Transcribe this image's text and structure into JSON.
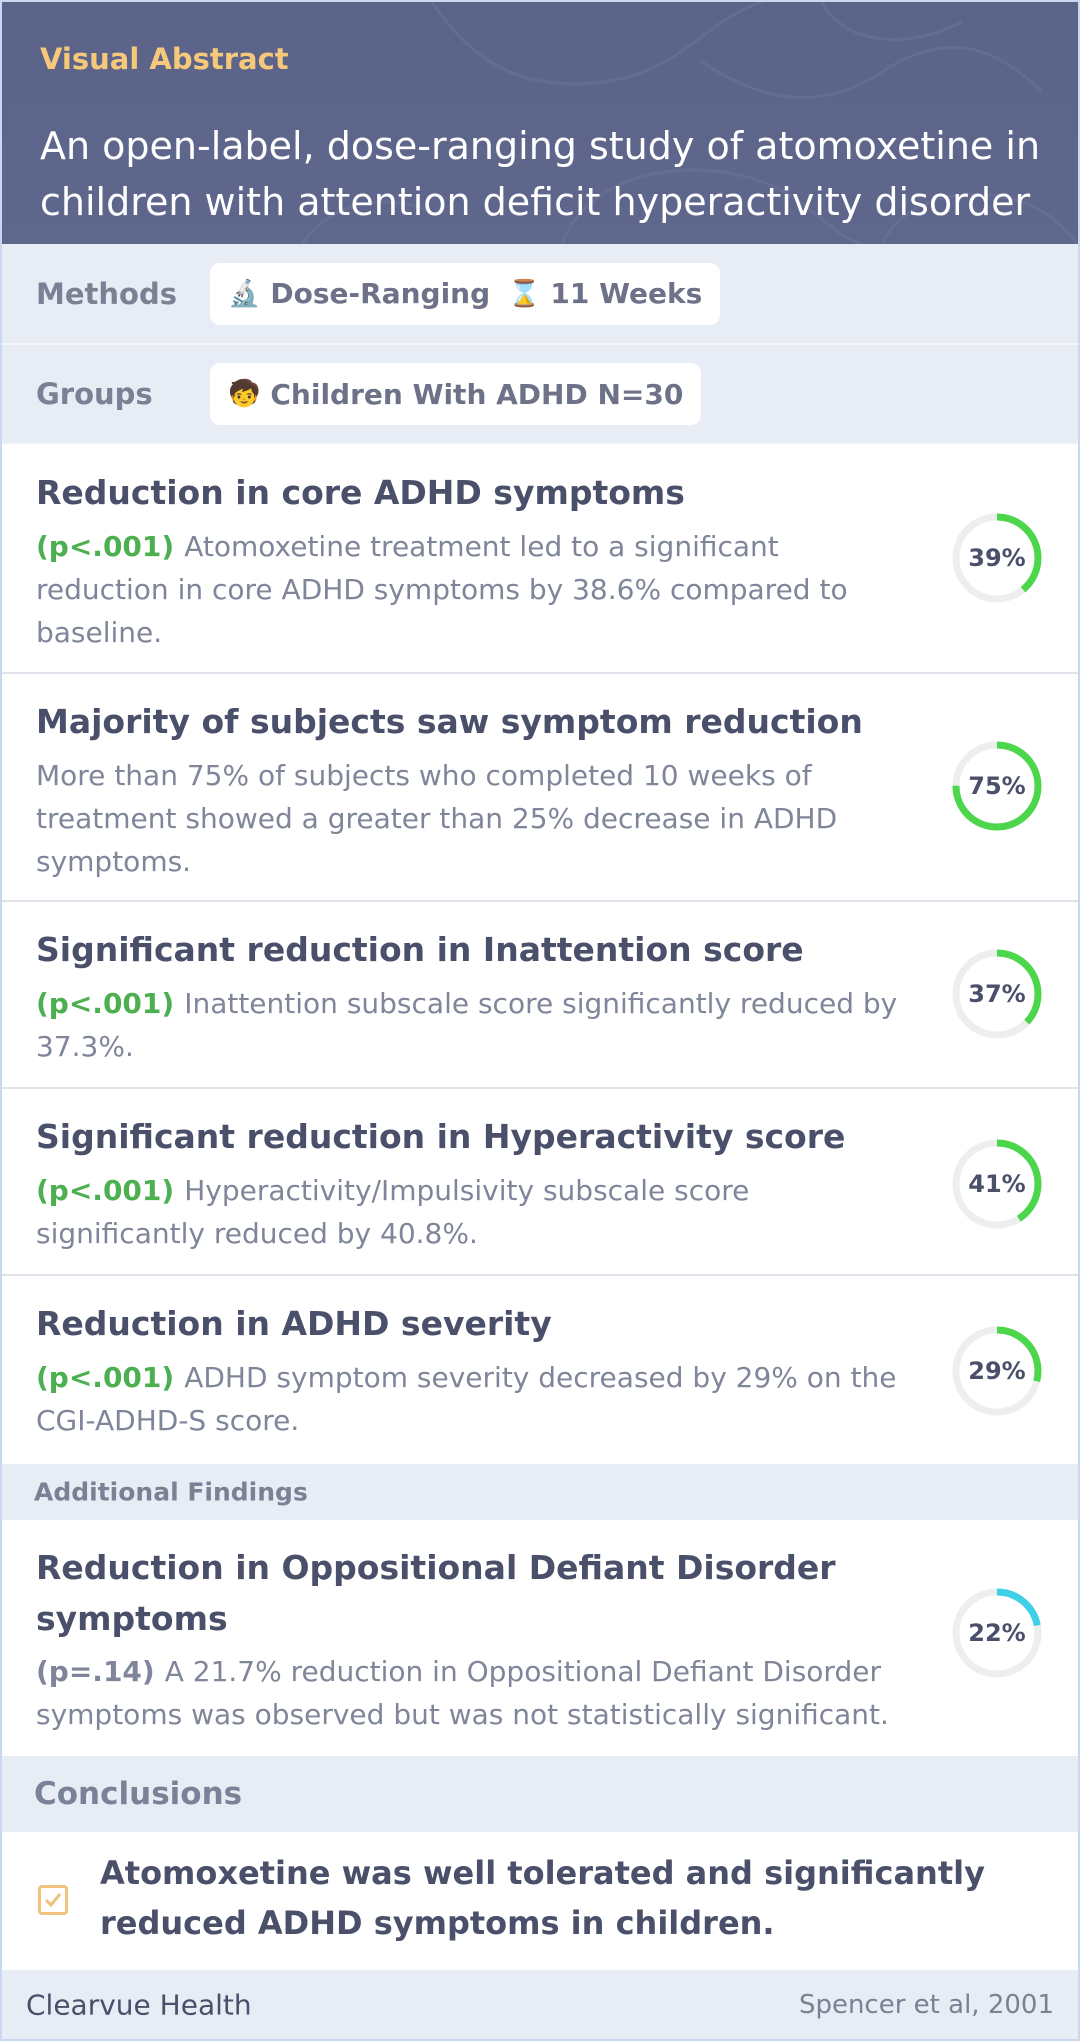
{
  "header": {
    "label": "Visual Abstract",
    "title": "An open-label, dose-ranging study of atomoxetine in children with attention deficit hyperactivity disorder"
  },
  "methods": {
    "label": "Methods",
    "chips": [
      {
        "icon": "🔬",
        "text": "Dose-Ranging"
      },
      {
        "icon": "⌛",
        "text": "11 Weeks"
      }
    ]
  },
  "groups": {
    "label": "Groups",
    "chips": [
      {
        "icon": "🧒",
        "text": "Children With ADHD N=30"
      }
    ]
  },
  "findings": [
    {
      "title": "Reduction in core ADHD symptoms",
      "pvalue": "(p<.001)",
      "body": "Atomoxetine treatment led to a significant reduction in core ADHD symptoms by 38.6% compared to baseline.",
      "percent_label": "39%",
      "percent": 39,
      "color": "#4cd64c"
    },
    {
      "title": "Majority of subjects saw symptom reduction",
      "pvalue": "",
      "body": "More than 75% of subjects who completed 10 weeks of treatment showed a greater than 25% decrease in ADHD symptoms.",
      "percent_label": "75%",
      "percent": 75,
      "color": "#4cd64c"
    },
    {
      "title": "Significant reduction in Inattention score",
      "pvalue": "(p<.001)",
      "body": "Inattention subscale score significantly reduced by 37.3%.",
      "percent_label": "37%",
      "percent": 37,
      "color": "#4cd64c"
    },
    {
      "title": "Significant reduction in Hyperactivity score",
      "pvalue": "(p<.001)",
      "body": "Hyperactivity/Impulsivity subscale score significantly reduced by 40.8%.",
      "percent_label": "41%",
      "percent": 41,
      "color": "#4cd64c"
    },
    {
      "title": "Reduction in ADHD severity",
      "pvalue": "(p<.001)",
      "body": "ADHD symptom severity decreased by 29% on the CGI-ADHD-S score.",
      "percent_label": "29%",
      "percent": 29,
      "color": "#4cd64c"
    }
  ],
  "additional": {
    "label": "Additional Findings",
    "finding": {
      "title": "Reduction in Oppositional Defiant Disorder symptoms",
      "pvalue": "(p=.14)",
      "body": "A 21.7% reduction in Oppositional Defiant Disorder symptoms was observed but was not statistically significant.",
      "percent_label": "22%",
      "percent": 22,
      "color": "#3fcfe8"
    }
  },
  "conclusions": {
    "label": "Conclusions",
    "text": "Atomoxetine was well tolerated and significantly reduced ADHD symptoms in children."
  },
  "footer": {
    "brand": "Clearvue Health",
    "citation": "Spencer et al, 2001"
  }
}
